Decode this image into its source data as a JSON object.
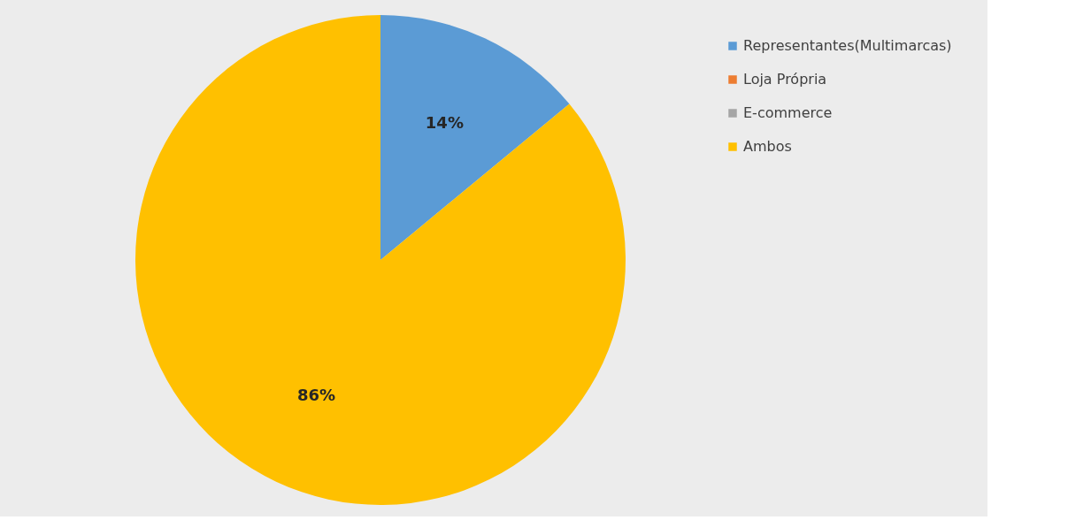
{
  "chart_data": {
    "type": "pie",
    "categories": [
      "Representantes(Multimarcas)",
      "Loja Própria",
      "E-commerce",
      "Ambos"
    ],
    "values": [
      14,
      0,
      0,
      86
    ],
    "colors": [
      "#5b9bd5",
      "#ed7d31",
      "#a5a5a5",
      "#ffc000"
    ],
    "value_labels": [
      "14%",
      null,
      null,
      "86%"
    ],
    "legend": "right"
  }
}
